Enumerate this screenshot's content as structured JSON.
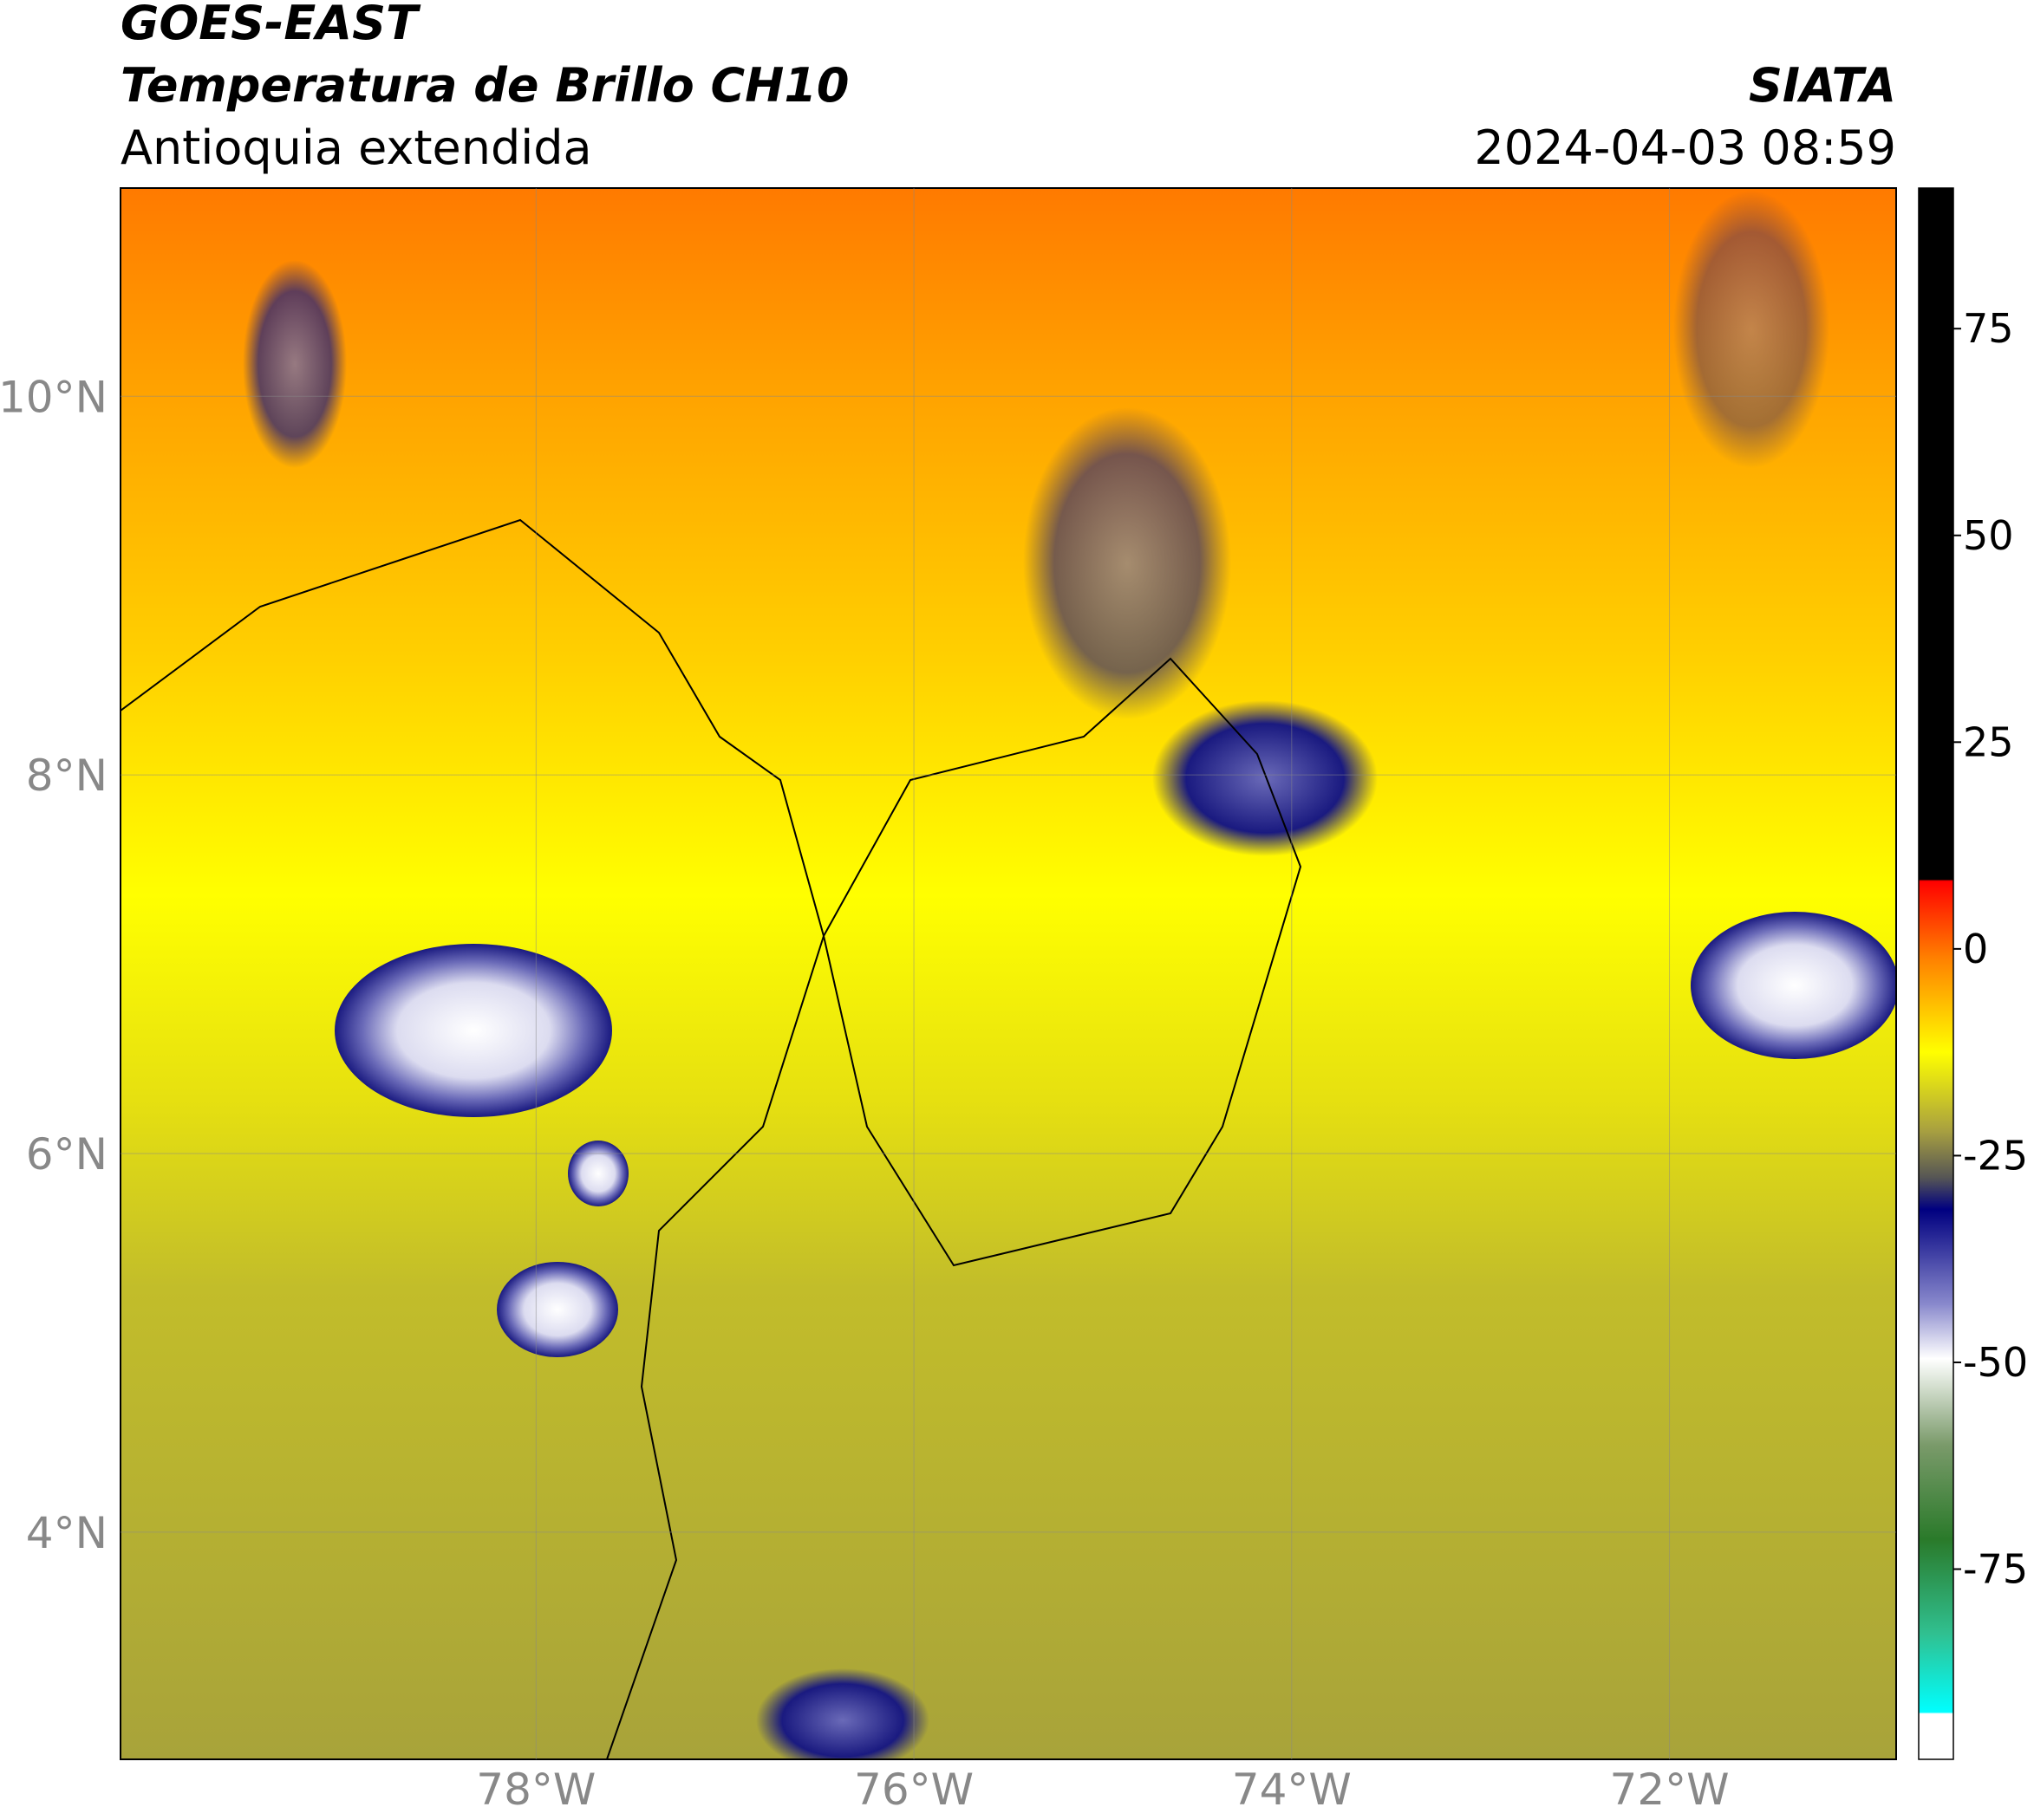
{
  "header": {
    "lines": [
      "GOES-EAST",
      "Temperatura de Brillo CH10",
      "Antioquia extendida"
    ],
    "source": "SIATA",
    "timestamp": "2024-04-03 08:59"
  },
  "map": {
    "xlim": [
      -80.2,
      -70.8
    ],
    "ylim": [
      2.8,
      11.1
    ],
    "xticks": [
      {
        "value": -78,
        "label": "78°W"
      },
      {
        "value": -76,
        "label": "76°W"
      },
      {
        "value": -74,
        "label": "74°W"
      },
      {
        "value": -72,
        "label": "72°W"
      }
    ],
    "yticks": [
      {
        "value": 10,
        "label": "10°N"
      },
      {
        "value": 8,
        "label": "8°N"
      },
      {
        "value": 6,
        "label": "6°N"
      },
      {
        "value": 4,
        "label": "4°N"
      }
    ],
    "grid": true
  },
  "colorbar": {
    "lim": [
      -98,
      92
    ],
    "ticks": [
      75,
      50,
      25,
      0,
      -25,
      -50,
      -75
    ]
  }
}
